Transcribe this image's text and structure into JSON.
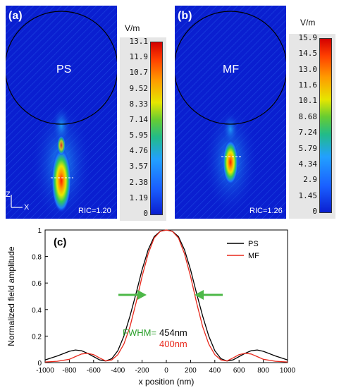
{
  "panel_a": {
    "label": "(a)",
    "material": "PS",
    "ric": "RIC=1.20",
    "axis_z": "Z",
    "axis_x": "X",
    "colorbar_unit": "V/m",
    "colorbar_ticks": [
      "13.1",
      "11.9",
      "10.7",
      "9.52",
      "8.33",
      "7.14",
      "5.95",
      "4.76",
      "3.57",
      "2.38",
      "1.19",
      "0"
    ]
  },
  "panel_b": {
    "label": "(b)",
    "material": "MF",
    "ric": "RIC=1.26",
    "colorbar_unit": "V/m",
    "colorbar_ticks": [
      "15.9",
      "14.5",
      "13.0",
      "11.6",
      "10.1",
      "8.68",
      "7.24",
      "5.79",
      "4.34",
      "2.9",
      "1.45",
      "0"
    ]
  },
  "chart_data": {
    "type": "line",
    "panel_label": "(c)",
    "xlabel": "x position (nm)",
    "ylabel": "Normalized field amplitude",
    "xlim": [
      -1000,
      1000
    ],
    "ylim": [
      0,
      1
    ],
    "xticks": [
      -1000,
      -800,
      -600,
      -400,
      -200,
      0,
      200,
      400,
      600,
      800,
      1000
    ],
    "yticks": [
      0,
      0.2,
      0.4,
      0.6,
      0.8,
      1
    ],
    "legend_position": "top-right",
    "annotation": {
      "prefix": "FWHM=",
      "values": [
        "454nm",
        "400nm"
      ]
    },
    "colors": {
      "PS": "#000000",
      "MF": "#e8291c",
      "FWHM": "#2ca02c",
      "arrow": "#4db848"
    },
    "series": [
      {
        "name": "PS",
        "x": [
          -1000,
          -900,
          -800,
          -750,
          -700,
          -650,
          -600,
          -550,
          -500,
          -450,
          -400,
          -350,
          -300,
          -250,
          -200,
          -150,
          -100,
          -50,
          0,
          50,
          100,
          150,
          200,
          250,
          300,
          350,
          400,
          450,
          500,
          550,
          600,
          650,
          700,
          750,
          800,
          900,
          1000
        ],
        "y": [
          0.02,
          0.05,
          0.085,
          0.095,
          0.09,
          0.07,
          0.045,
          0.02,
          0.012,
          0.03,
          0.09,
          0.2,
          0.35,
          0.52,
          0.7,
          0.85,
          0.95,
          0.99,
          1.0,
          0.99,
          0.95,
          0.85,
          0.7,
          0.52,
          0.35,
          0.2,
          0.09,
          0.03,
          0.012,
          0.02,
          0.045,
          0.07,
          0.09,
          0.095,
          0.085,
          0.05,
          0.02
        ]
      },
      {
        "name": "MF",
        "x": [
          -1000,
          -900,
          -800,
          -750,
          -700,
          -650,
          -600,
          -550,
          -500,
          -450,
          -400,
          -350,
          -300,
          -250,
          -200,
          -150,
          -100,
          -50,
          0,
          50,
          100,
          150,
          200,
          250,
          300,
          350,
          400,
          450,
          500,
          550,
          600,
          650,
          700,
          750,
          800,
          900,
          1000
        ],
        "y": [
          0.005,
          0.01,
          0.025,
          0.045,
          0.065,
          0.07,
          0.06,
          0.035,
          0.012,
          0.02,
          0.06,
          0.14,
          0.27,
          0.45,
          0.65,
          0.82,
          0.94,
          0.99,
          1.0,
          0.99,
          0.94,
          0.82,
          0.65,
          0.45,
          0.27,
          0.14,
          0.06,
          0.02,
          0.012,
          0.035,
          0.06,
          0.07,
          0.065,
          0.045,
          0.025,
          0.01,
          0.005
        ]
      }
    ]
  }
}
